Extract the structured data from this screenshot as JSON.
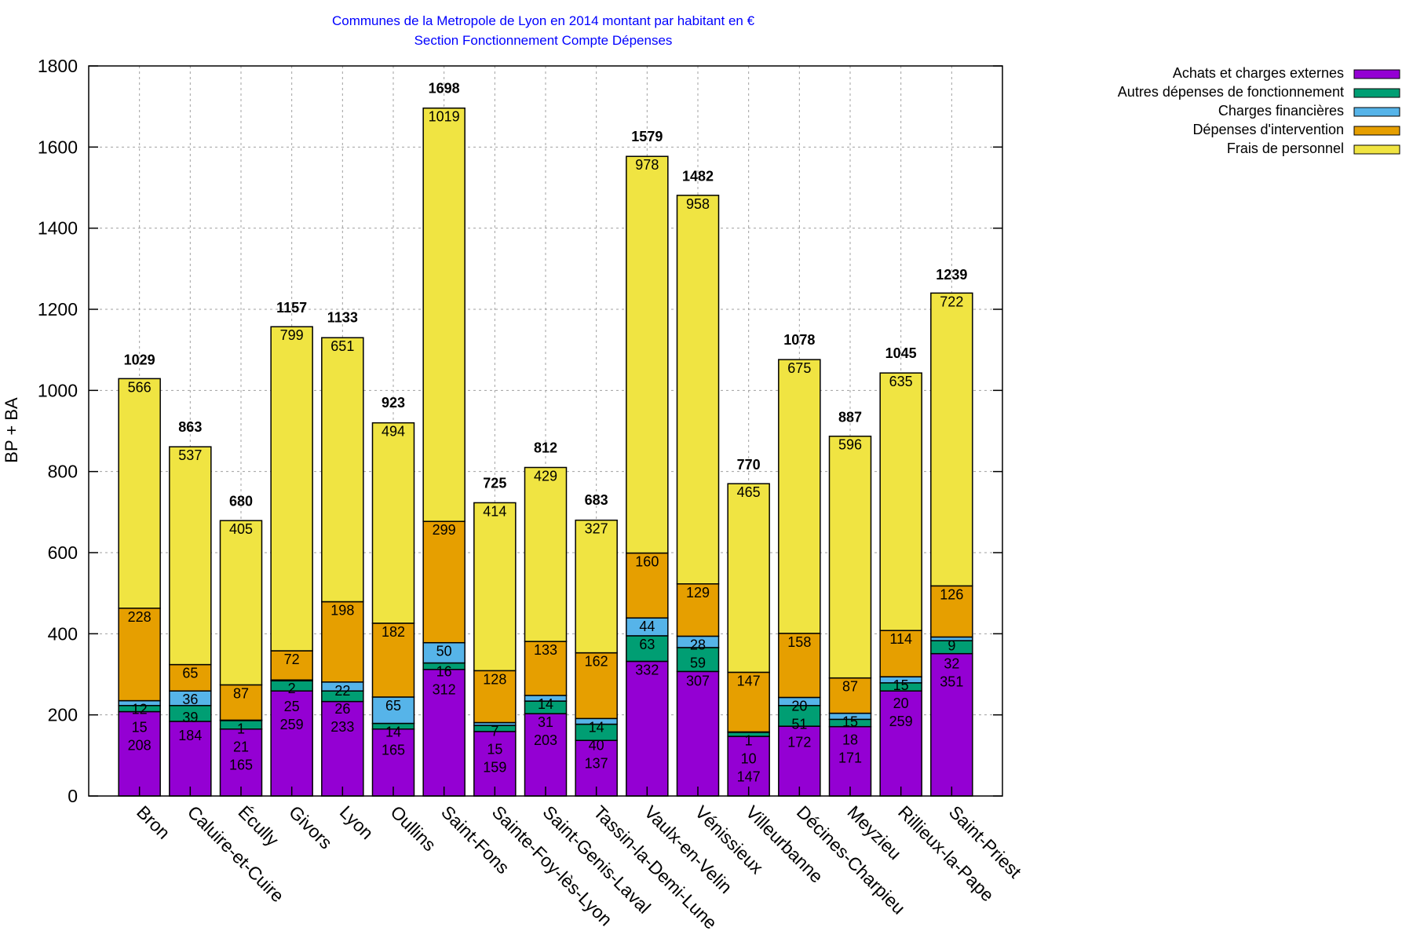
{
  "chart_data": {
    "type": "bar",
    "stacked": true,
    "title": "Communes de la Metropole de Lyon en 2014 montant par habitant en €",
    "subtitle": "Section Fonctionnement Compte Dépenses",
    "xlabel": "",
    "ylabel": "BP + BA",
    "ylim": [
      0,
      1800
    ],
    "yticks": [
      0,
      200,
      400,
      600,
      800,
      1000,
      1200,
      1400,
      1600,
      1800
    ],
    "grid": true,
    "legend_position": "outside-top-right",
    "title_color": "#0000ff",
    "categories": [
      "Bron",
      "Caluire-et-Cuire",
      "Écully",
      "Givors",
      "Lyon",
      "Oullins",
      "Saint-Fons",
      "Sainte-Foy-lès-Lyon",
      "Saint-Genis-Laval",
      "Tassin-la-Demi-Lune",
      "Vaulx-en-Velin",
      "Vénissieux",
      "Villeurbanne",
      "Décines-Charpieu",
      "Meyzieu",
      "Rillieux-la-Pape",
      "Saint-Priest"
    ],
    "totals": [
      1029,
      863,
      680,
      1157,
      1133,
      923,
      1698,
      725,
      812,
      683,
      1579,
      1482,
      770,
      1078,
      887,
      1045,
      1239
    ],
    "series": [
      {
        "name": "Achats et charges externes",
        "color": "#9400d3",
        "values": [
          208,
          184,
          165,
          259,
          233,
          165,
          312,
          159,
          203,
          137,
          332,
          307,
          147,
          172,
          171,
          259,
          351
        ]
      },
      {
        "name": "Autres dépenses de fonctionnement",
        "color": "#009e73",
        "values": [
          15,
          39,
          21,
          25,
          26,
          14,
          16,
          15,
          31,
          40,
          63,
          59,
          10,
          51,
          18,
          20,
          32
        ]
      },
      {
        "name": "Charges financières",
        "color": "#56b4e9",
        "values": [
          12,
          36,
          1,
          2,
          22,
          65,
          50,
          7,
          14,
          14,
          44,
          28,
          1,
          20,
          15,
          15,
          9
        ]
      },
      {
        "name": "Dépenses d'intervention",
        "color": "#e69f00",
        "values": [
          228,
          65,
          87,
          72,
          198,
          182,
          299,
          128,
          133,
          162,
          160,
          129,
          147,
          158,
          87,
          114,
          126
        ]
      },
      {
        "name": "Frais de personnel",
        "color": "#f0e442",
        "values": [
          566,
          537,
          405,
          799,
          651,
          494,
          1019,
          414,
          429,
          327,
          978,
          958,
          465,
          675,
          596,
          635,
          722
        ]
      }
    ]
  }
}
